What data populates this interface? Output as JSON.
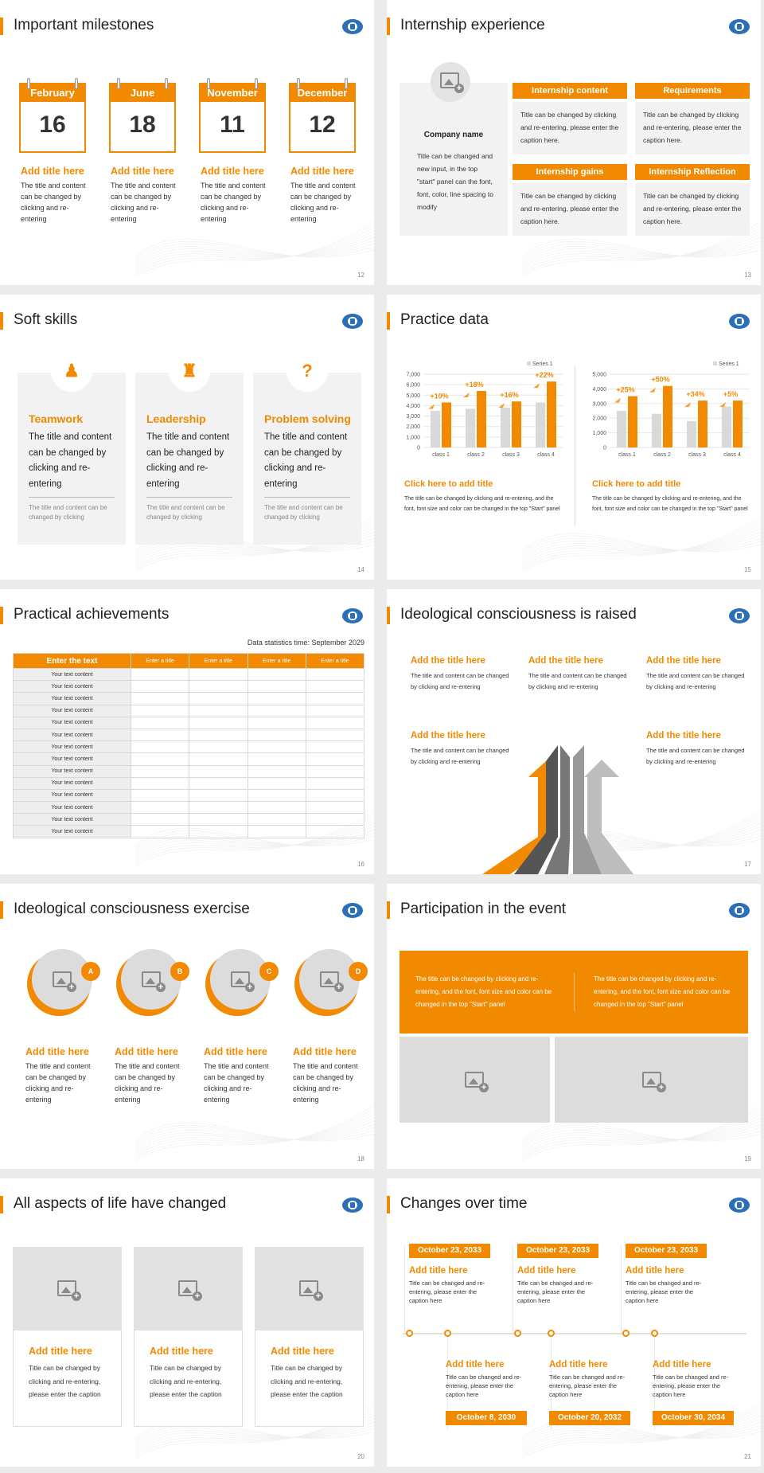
{
  "slides": [
    {
      "title": "Important milestones",
      "page": "12",
      "cards": [
        {
          "month": "February",
          "day": "16",
          "head": "Add title here",
          "body": "The title and content can be changed by clicking and re-entering"
        },
        {
          "month": "June",
          "day": "18",
          "head": "Add title here",
          "body": "The title and content can be changed by clicking and re-entering"
        },
        {
          "month": "November",
          "day": "11",
          "head": "Add title here",
          "body": "The title and content can be changed by clicking and re-entering"
        },
        {
          "month": "December",
          "day": "12",
          "head": "Add title here",
          "body": "The title and content can be changed by clicking and re-entering"
        }
      ]
    },
    {
      "title": "Internship experience",
      "page": "13",
      "company": "Company name",
      "company_text": "Title can be changed and new input, in the top \"start\" panel can the font, font, color, line spacing to modify",
      "boxes": [
        {
          "head": "Internship content",
          "body": "Title can be changed by clicking and re-entering, please enter the caption here."
        },
        {
          "head": "Requirements",
          "body": "Title can be changed by clicking and re-entering, please enter the caption here."
        },
        {
          "head": "Internship gains",
          "body": "Title can be changed by clicking and re-entering, please enter the caption here."
        },
        {
          "head": "Internship Reflection",
          "body": "Title can be changed by clicking and re-entering, please enter the caption here."
        }
      ]
    },
    {
      "title": "Soft skills",
      "page": "14",
      "cards": [
        {
          "head": "Teamwork",
          "body": "The title and content can be changed by clicking and re-entering",
          "foot": "The title and content can be changed by clicking"
        },
        {
          "head": "Leadership",
          "body": "The title and content can be changed by clicking and re-entering",
          "foot": "The title and content can be changed by clicking"
        },
        {
          "head": "Problem solving",
          "body": "The title and content can be changed by clicking and re-entering",
          "foot": "The title and content can be changed by clicking"
        }
      ]
    },
    {
      "title": "Practice data",
      "page": "15",
      "captions": [
        {
          "head": "Click here to add title",
          "body": "The title can be changed by clicking and re-entering, and the font, font size and color can be changed in the top \"Start\" panel"
        },
        {
          "head": "Click here to add title",
          "body": "The title can be changed by clicking and re-entering, and the font, font size and color can be changed in the top \"Start\" panel"
        }
      ]
    },
    {
      "title": "Practical achievements",
      "page": "16",
      "stat_time": "Data statistics time: September 2029",
      "headers": [
        "Enter the text",
        "Enter a title",
        "Enter a title",
        "Enter a title",
        "Enter a title"
      ],
      "row_label": "Your text content"
    },
    {
      "title": "Ideological consciousness is raised",
      "page": "17",
      "items": [
        {
          "head": "Add the title here",
          "body": "The title and content can be changed by clicking and re-entering"
        },
        {
          "head": "Add the title here",
          "body": "The title and content can be changed by clicking and re-entering"
        },
        {
          "head": "Add the title here",
          "body": "The title and content can be changed by clicking and re-entering"
        },
        {
          "head": "Add the title here",
          "body": "The title and content can be changed by clicking and re-entering"
        },
        {
          "head": "Add the title here",
          "body": "The title and content can be changed by clicking and re-entering"
        }
      ]
    },
    {
      "title": "Ideological consciousness exercise",
      "page": "18",
      "cards": [
        {
          "letter": "A",
          "head": "Add title here",
          "body": "The title and content can be changed by clicking and re-entering"
        },
        {
          "letter": "B",
          "head": "Add title here",
          "body": "The title and content can be changed by clicking and re-entering"
        },
        {
          "letter": "C",
          "head": "Add title here",
          "body": "The title and content can be changed by clicking and re-entering"
        },
        {
          "letter": "D",
          "head": "Add title here",
          "body": "The title and content can be changed by clicking and re-entering"
        }
      ]
    },
    {
      "title": "Participation in the event",
      "page": "19",
      "texts": [
        "The title can be changed by clicking and re-entering, and the font, font size and color can be changed in the top \"Start\" panel",
        "The title can be changed by clicking and re-entering, and the font, font size and color can be changed in the top \"Start\" panel"
      ]
    },
    {
      "title": "All aspects of life have changed",
      "page": "20",
      "cards": [
        {
          "head": "Add title here",
          "body": "Title can be changed by clicking and re-entering, please enter the caption"
        },
        {
          "head": "Add title here",
          "body": "Title can be changed by clicking and re-entering, please enter the caption"
        },
        {
          "head": "Add title here",
          "body": "Title can be changed by clicking and re-entering, please enter the caption"
        }
      ]
    },
    {
      "title": "Changes over time",
      "page": "21",
      "top": [
        {
          "date": "October 23, 2033",
          "head": "Add title here",
          "body": "Title can be changed and re-entering, please enter the caption here"
        },
        {
          "date": "October 23, 2033",
          "head": "Add title here",
          "body": "Title can be changed and re-entering, please enter the caption here"
        },
        {
          "date": "October 23, 2033",
          "head": "Add title here",
          "body": "Title can be changed and re-entering, please enter the caption here"
        }
      ],
      "bottom": [
        {
          "date": "October 8, 2030",
          "head": "Add title here",
          "body": "Title can be changed and re-entering, please enter the caption here"
        },
        {
          "date": "October 20, 2032",
          "head": "Add title here",
          "body": "Title can be changed and re-entering, please enter the caption here"
        },
        {
          "date": "October 30, 2034",
          "head": "Add title here",
          "body": "Title can be changed and re-entering, please enter the caption here"
        }
      ]
    }
  ],
  "chart_data": [
    {
      "type": "bar",
      "legend": "Series 1",
      "categories": [
        "class 1",
        "class 2",
        "class 3",
        "class 4"
      ],
      "series": [
        {
          "name": "",
          "values": [
            3500,
            3700,
            3800,
            4300
          ],
          "color": "#d9d9d9"
        },
        {
          "name": "",
          "values": [
            4300,
            5400,
            4400,
            6300
          ],
          "color": "#f18a00"
        }
      ],
      "annotations": [
        "+10%",
        "+18%",
        "+16%",
        "+22%"
      ],
      "ylim": [
        0,
        7000
      ],
      "yticks": [
        "7,000",
        "6,000",
        "5,000",
        "4,000",
        "3,000",
        "2,000",
        "1,000",
        "0"
      ]
    },
    {
      "type": "bar",
      "legend": "Series 1",
      "categories": [
        "class 1",
        "class 2",
        "class 3",
        "class 4"
      ],
      "series": [
        {
          "name": "",
          "values": [
            2500,
            2300,
            1800,
            2800
          ],
          "color": "#d9d9d9"
        },
        {
          "name": "",
          "values": [
            3500,
            4200,
            3200,
            3200
          ],
          "color": "#f18a00"
        }
      ],
      "annotations": [
        "+25%",
        "+50%",
        "+34%",
        "+5%"
      ],
      "ylim": [
        0,
        5000
      ],
      "yticks": [
        "5,000",
        "4,000",
        "3,000",
        "2,000",
        "1,000",
        "0"
      ]
    }
  ],
  "colors": {
    "accent": "#f18a00",
    "gray": "#d9d9d9",
    "panel": "#f2f2f2"
  }
}
